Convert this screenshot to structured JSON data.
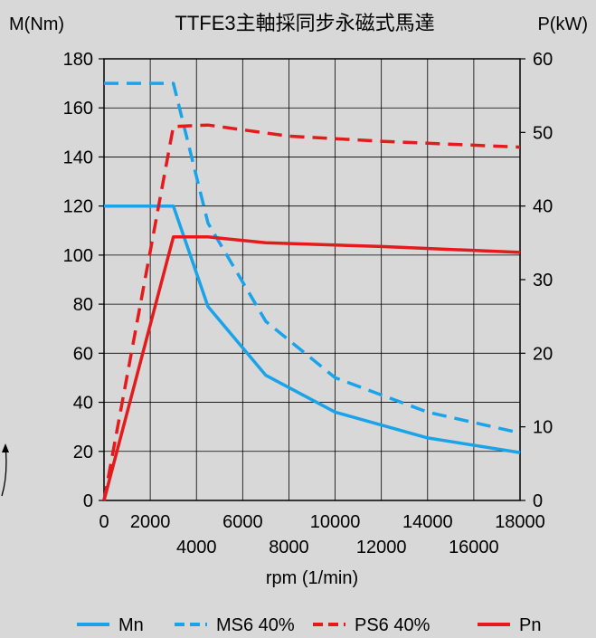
{
  "chart_data": {
    "type": "line",
    "title": "TTFE3主軸採同步永磁式馬達",
    "xlabel": "rpm (1/min)",
    "ylabel_left": "M(Nm)",
    "ylabel_right": "P(kW)",
    "xlim": [
      0,
      18000
    ],
    "ylim_left": [
      0,
      180
    ],
    "ylim_right": [
      0,
      60
    ],
    "grid": true,
    "legend_position": "bottom",
    "x_ticks": [
      0,
      2000,
      4000,
      6000,
      8000,
      10000,
      12000,
      14000,
      16000,
      18000
    ],
    "y_left_ticks": [
      0,
      20,
      40,
      60,
      80,
      100,
      120,
      140,
      160,
      180
    ],
    "y_right_ticks": [
      0,
      10,
      20,
      30,
      40,
      50,
      60
    ],
    "series": [
      {
        "name": "Mn",
        "axis": "left",
        "color": "#1aa3e8",
        "dash": "solid",
        "points": [
          [
            0,
            120
          ],
          [
            3000,
            120
          ],
          [
            4500,
            79
          ],
          [
            7000,
            51
          ],
          [
            10000,
            36
          ],
          [
            14000,
            25.5
          ],
          [
            18000,
            19.5
          ]
        ]
      },
      {
        "name": "MS6 40%",
        "axis": "left",
        "color": "#1aa3e8",
        "dash": "dashed",
        "points": [
          [
            0,
            170
          ],
          [
            3000,
            170
          ],
          [
            4500,
            113
          ],
          [
            7000,
            73
          ],
          [
            10000,
            50
          ],
          [
            14000,
            36
          ],
          [
            18000,
            27.5
          ]
        ]
      },
      {
        "name": "PS6 40%",
        "axis": "right",
        "color": "#e41a1c",
        "dash": "dashed",
        "points": [
          [
            0,
            0
          ],
          [
            3000,
            50.8
          ],
          [
            4500,
            51
          ],
          [
            8000,
            49.5
          ],
          [
            12000,
            48.8
          ],
          [
            18000,
            48
          ]
        ]
      },
      {
        "name": "Pn",
        "axis": "right",
        "color": "#e41a1c",
        "dash": "solid",
        "points": [
          [
            0,
            0
          ],
          [
            3000,
            35.8
          ],
          [
            4500,
            35.8
          ],
          [
            7000,
            35
          ],
          [
            12000,
            34.5
          ],
          [
            18000,
            33.7
          ]
        ]
      }
    ]
  }
}
